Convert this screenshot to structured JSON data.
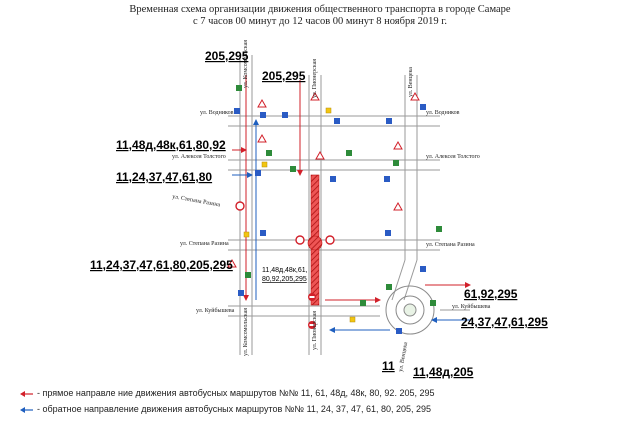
{
  "title": {
    "line1": "Временная схема организации движения общественного транспорта в городе Самаре",
    "line2": "с 7 часов 00 минут до 12 часов 00 минут 8 ноября 2019 г."
  },
  "streets": {
    "komsomolskaya": "ул. Комсомольская",
    "pionerskaya": "ул. Пионерская",
    "venceka": "ул. Венцека",
    "vodnikov_w": "ул. Водников",
    "vodnikov_e": "ул. Водников",
    "tolstogo_w": "ул. Алексея Толстого",
    "tolstogo_e": "ул. Алексея Толстого",
    "razina_w1": "ул. Степана Разина",
    "razina_w2": "ул. Степана Разина",
    "razina_e": "ул. Степана Разина",
    "kuybysheva_w": "ул. Куйбышева",
    "kuybysheva_e": "ул. Куйбышева",
    "pionerskaya_s": "ул. Пионерская",
    "komsomolskaya_s": "ул. Комсомольская",
    "venceka_s": "ул. Венцека"
  },
  "routes": {
    "r1": "205,295",
    "r2": "205,295",
    "r3": "11,48д,48к,61,80,92",
    "r4": "11,24,37,47,61,80",
    "r5": "11,24,37,47,61,80,205,295",
    "r6a": "11,48д,48к,61,",
    "r6b": "80,92,205,295",
    "r7": "61,92,295",
    "r8": "24,37,47,61,295",
    "r9": "11",
    "r10": "11,48д,205"
  },
  "legend": {
    "forward": "- прямое направле ние движения автобусных маршрутов №№ 11, 61, 48д, 48к, 80, 92. 205, 295",
    "reverse": "- обратное направление движения автобусных маршрутов №№ 11, 24, 37, 47, 61, 80, 205, 295"
  },
  "colors": {
    "forward_arrow": "#d2202a",
    "reverse_arrow": "#1f5fbf",
    "closed_section": "#d9322b",
    "road": "#a9a9a9",
    "sign_green": "#2e8b3a",
    "sign_blue": "#2a5bc4",
    "sign_yellow": "#f2c511"
  },
  "icons": [
    "prohibition-sign-icon",
    "no-entry-sign-icon",
    "direction-sign-icon",
    "bus-stop-icon",
    "roundabout-icon"
  ]
}
